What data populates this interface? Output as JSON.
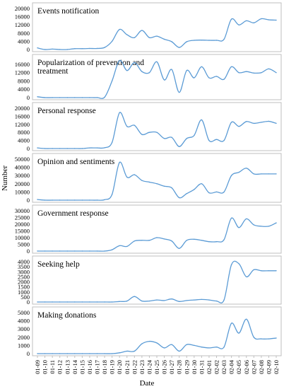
{
  "figure": {
    "ylabel": "Number",
    "xlabel": "Date",
    "line_color": "#5b9bd5",
    "dates": [
      "01-09",
      "01-10",
      "01-11",
      "01-12",
      "01-13",
      "01-14",
      "01-15",
      "01-16",
      "01-17",
      "01-18",
      "01-19",
      "01-20",
      "01-21",
      "01-22",
      "01-23",
      "01-24",
      "01-25",
      "01-26",
      "01-27",
      "01-28",
      "01-29",
      "01-30",
      "01-31",
      "02-01",
      "02-02",
      "02-03",
      "02-04",
      "02-05",
      "02-06",
      "02-07",
      "02-08",
      "02-09",
      "02-10"
    ]
  },
  "chart_data": [
    {
      "type": "line",
      "title": "Events notification",
      "ylim": [
        0,
        20000
      ],
      "yticks": [
        0,
        4000,
        8000,
        12000,
        16000,
        20000
      ],
      "values": [
        800,
        0,
        200,
        0,
        0,
        400,
        400,
        500,
        500,
        1000,
        4000,
        9800,
        7200,
        5800,
        9300,
        5800,
        6500,
        5000,
        3800,
        1000,
        3800,
        4500,
        4600,
        4500,
        4500,
        5000,
        14800,
        12000,
        14000,
        13000,
        15000,
        14500,
        14300
      ]
    },
    {
      "type": "line",
      "title": "Popularization of prevention and treatment",
      "ylim": [
        0,
        18000
      ],
      "yticks": [
        0,
        4000,
        8000,
        12000,
        16000
      ],
      "values": [
        400,
        0,
        0,
        0,
        0,
        0,
        0,
        0,
        0,
        200,
        8000,
        17800,
        13000,
        16800,
        12500,
        12000,
        17200,
        8500,
        13500,
        2500,
        13000,
        9500,
        14800,
        9500,
        10200,
        8800,
        14800,
        12000,
        12500,
        11800,
        12000,
        13800,
        12000
      ]
    },
    {
      "type": "line",
      "title": "Personal response",
      "ylim": [
        0,
        20000
      ],
      "yticks": [
        0,
        4000,
        8000,
        12000,
        16000,
        20000
      ],
      "values": [
        300,
        0,
        0,
        0,
        0,
        0,
        0,
        300,
        300,
        400,
        3000,
        17800,
        11000,
        11500,
        7000,
        8000,
        8000,
        5000,
        5500,
        1000,
        5000,
        6500,
        14200,
        4000,
        4500,
        4000,
        13000,
        11000,
        13400,
        12500,
        13000,
        13500,
        12500
      ]
    },
    {
      "type": "line",
      "title": "Opinion and sentiments",
      "ylim": [
        0,
        50000
      ],
      "yticks": [
        0,
        10000,
        20000,
        30000,
        40000,
        50000
      ],
      "values": [
        800,
        0,
        0,
        0,
        0,
        0,
        0,
        0,
        0,
        500,
        7000,
        46000,
        28000,
        31000,
        24000,
        22000,
        20000,
        17000,
        15000,
        3000,
        8000,
        13000,
        20000,
        9000,
        10000,
        10000,
        30000,
        34000,
        39000,
        32000,
        32000,
        32000,
        32000
      ]
    },
    {
      "type": "line",
      "title": "Government response",
      "ylim": [
        0,
        30000
      ],
      "yticks": [
        0,
        5000,
        10000,
        15000,
        20000,
        25000,
        30000
      ],
      "values": [
        0,
        0,
        0,
        0,
        0,
        0,
        0,
        0,
        0,
        0,
        1000,
        4000,
        3500,
        7500,
        8000,
        8000,
        10000,
        9000,
        7500,
        2000,
        8000,
        8800,
        8000,
        7000,
        7000,
        8500,
        24500,
        17500,
        24000,
        19500,
        18500,
        18500,
        21000
      ]
    },
    {
      "type": "line",
      "title": "Seeking help",
      "ylim": [
        0,
        4000
      ],
      "yticks": [
        0,
        500,
        1000,
        1500,
        2000,
        2500,
        3000,
        3500,
        4000
      ],
      "values": [
        0,
        0,
        0,
        0,
        0,
        0,
        0,
        0,
        0,
        0,
        0,
        50,
        100,
        550,
        100,
        100,
        200,
        150,
        300,
        50,
        150,
        200,
        250,
        200,
        100,
        200,
        3700,
        3800,
        2500,
        3200,
        3100,
        3100,
        3100
      ]
    },
    {
      "type": "line",
      "title": "Making donations",
      "ylim": [
        0,
        5000
      ],
      "yticks": [
        0,
        1000,
        2000,
        3000,
        4000,
        5000
      ],
      "values": [
        0,
        0,
        0,
        0,
        0,
        0,
        0,
        0,
        0,
        0,
        0,
        100,
        300,
        300,
        1200,
        1500,
        1300,
        700,
        1100,
        300,
        1100,
        1000,
        800,
        700,
        800,
        800,
        3700,
        2500,
        4200,
        2000,
        1800,
        1800,
        1900
      ]
    }
  ]
}
